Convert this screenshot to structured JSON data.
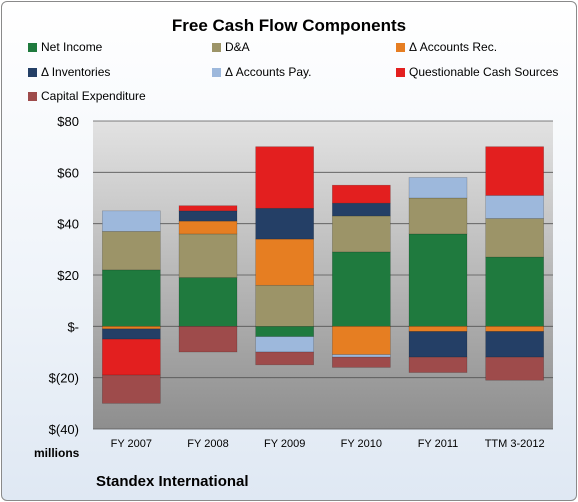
{
  "chart_data": {
    "type": "bar",
    "stacked": true,
    "title": "Free Cash Flow Components",
    "units_label": "millions",
    "company": "Standex International",
    "categories": [
      "FY 2007",
      "FY 2008",
      "FY 2009",
      "FY 2010",
      "FY 2011",
      "TTM 3-2012"
    ],
    "ylim": [
      -40,
      80
    ],
    "yticks": [
      80,
      60,
      40,
      20,
      0,
      -20,
      -40
    ],
    "ytick_labels": [
      "$80",
      "$60",
      "$40",
      "$20",
      "$-",
      "$(20)",
      "$(40)"
    ],
    "legend_position": "top",
    "series": [
      {
        "name": "Net Income",
        "color": "#1f7a3e",
        "values": [
          22,
          19,
          -4,
          29,
          36,
          27
        ]
      },
      {
        "name": "D&A",
        "color": "#9c9468",
        "values": [
          15,
          17,
          16,
          14,
          14,
          15
        ]
      },
      {
        "name": "Δ Accounts Rec.",
        "color": "#e67e22",
        "values": [
          -1,
          5,
          18,
          -11,
          -2,
          -2
        ]
      },
      {
        "name": "Δ Inventories",
        "color": "#243f66",
        "values": [
          -4,
          4,
          12,
          5,
          -10,
          -10
        ]
      },
      {
        "name": "Δ Accounts Pay.",
        "color": "#9db8dc",
        "values": [
          8,
          0,
          -6,
          -1,
          8,
          9
        ]
      },
      {
        "name": "Questionable Cash Sources",
        "color": "#e31f1f",
        "values": [
          -14,
          2,
          24,
          7,
          0,
          19
        ]
      },
      {
        "name": "Capital Expenditure",
        "color": "#9e4b4b",
        "values": [
          -11,
          -10,
          -5,
          -4,
          -6,
          -9
        ]
      }
    ]
  }
}
